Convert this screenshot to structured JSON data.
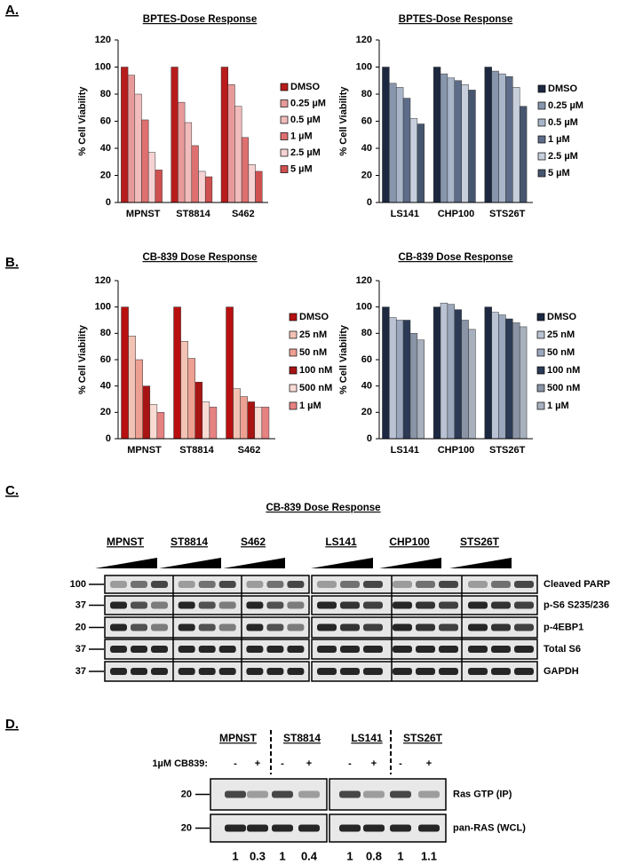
{
  "chart_data": [
    {
      "type": "bar",
      "title": "BPTES-Dose Response",
      "y_label": "% Cell Viability",
      "categories": [
        "MPNST",
        "ST8814",
        "S462"
      ],
      "series": [
        {
          "name": "DMSO",
          "color": "#b81c1c",
          "values": [
            100,
            100,
            100
          ]
        },
        {
          "name": "0.25 µM",
          "color": "#e89a9a",
          "values": [
            94,
            74,
            87
          ]
        },
        {
          "name": "0.5 µM",
          "color": "#f2bcbc",
          "values": [
            80,
            59,
            71
          ]
        },
        {
          "name": "1 µM",
          "color": "#de7070",
          "values": [
            61,
            42,
            48
          ]
        },
        {
          "name": "2.5 µM",
          "color": "#f6d2d2",
          "values": [
            37,
            23,
            28
          ]
        },
        {
          "name": "5 µM",
          "color": "#d05050",
          "values": [
            24,
            19,
            23
          ]
        }
      ],
      "ylim": [
        0,
        120
      ],
      "yticks": [
        0,
        20,
        40,
        60,
        80,
        100,
        120
      ]
    },
    {
      "type": "bar",
      "title": "BPTES-Dose Response",
      "y_label": "% Cell Viability",
      "categories": [
        "LS141",
        "CHP100",
        "STS26T"
      ],
      "series": [
        {
          "name": "DMSO",
          "color": "#1c2940",
          "values": [
            100,
            100,
            100
          ]
        },
        {
          "name": "0.25 µM",
          "color": "#8896ad",
          "values": [
            88,
            95,
            97
          ]
        },
        {
          "name": "0.5 µM",
          "color": "#a9b5c9",
          "values": [
            85,
            92,
            95
          ]
        },
        {
          "name": "1 µM",
          "color": "#5d6c88",
          "values": [
            77,
            90,
            93
          ]
        },
        {
          "name": "2.5 µM",
          "color": "#c7cfdc",
          "values": [
            62,
            87,
            85
          ]
        },
        {
          "name": "5 µM",
          "color": "#46566f",
          "values": [
            58,
            83,
            71
          ]
        }
      ],
      "ylim": [
        0,
        120
      ],
      "yticks": [
        0,
        20,
        40,
        60,
        80,
        100,
        120
      ]
    },
    {
      "type": "bar",
      "title": "CB-839 Dose Response",
      "y_label": "% Cell Viability",
      "categories": [
        "MPNST",
        "ST8814",
        "S462"
      ],
      "series": [
        {
          "name": "DMSO",
          "color": "#b81010",
          "values": [
            100,
            100,
            100
          ]
        },
        {
          "name": "25 nM",
          "color": "#f2c2b4",
          "values": [
            78,
            74,
            38
          ]
        },
        {
          "name": "50 nM",
          "color": "#eda092",
          "values": [
            60,
            61,
            32
          ]
        },
        {
          "name": "100 nM",
          "color": "#a81414",
          "values": [
            40,
            43,
            28
          ]
        },
        {
          "name": "500 nM",
          "color": "#f8dcd4",
          "values": [
            26,
            28,
            24
          ]
        },
        {
          "name": "1 µM",
          "color": "#e68282",
          "values": [
            20,
            24,
            24
          ]
        }
      ],
      "ylim": [
        0,
        120
      ],
      "yticks": [
        0,
        20,
        40,
        60,
        80,
        100,
        120
      ]
    },
    {
      "type": "bar",
      "title": "CB-839 Dose Response",
      "y_label": "% Cell Viability",
      "categories": [
        "LS141",
        "CHP100",
        "STS26T"
      ],
      "series": [
        {
          "name": "DMSO",
          "color": "#1c2940",
          "values": [
            100,
            100,
            100
          ]
        },
        {
          "name": "25 nM",
          "color": "#b9c3d3",
          "values": [
            92,
            103,
            96
          ]
        },
        {
          "name": "50 nM",
          "color": "#9aa7bc",
          "values": [
            90,
            102,
            94
          ]
        },
        {
          "name": "100 nM",
          "color": "#2c3a55",
          "values": [
            90,
            98,
            91
          ]
        },
        {
          "name": "500 nM",
          "color": "#8a94a6",
          "values": [
            80,
            90,
            88
          ]
        },
        {
          "name": "1 µM",
          "color": "#a8b0be",
          "values": [
            75,
            83,
            85
          ]
        }
      ],
      "ylim": [
        0,
        120
      ],
      "yticks": [
        0,
        20,
        40,
        60,
        80,
        100,
        120
      ]
    }
  ],
  "panel_labels": [
    "A.",
    "B.",
    "C.",
    "D."
  ],
  "panel_c": {
    "title": "CB-839 Dose Response",
    "cell_lines": [
      "MPNST",
      "ST8814",
      "S462",
      "LS141",
      "CHP100",
      "STS26T"
    ],
    "markers": [
      "100",
      "37",
      "20",
      "37",
      "37"
    ],
    "proteins": [
      "Cleaved PARP",
      "p-S6 S235/236",
      "p-4EBP1",
      "Total S6",
      "GAPDH"
    ]
  },
  "panel_d": {
    "cell_lines": [
      "MPNST",
      "ST8814",
      "LS141",
      "STS26T"
    ],
    "treatment": "1µM CB839:",
    "signs": [
      "-",
      "+",
      "-",
      "+",
      "-",
      "+",
      "-",
      "+"
    ],
    "markers": [
      "20",
      "20"
    ],
    "rows": [
      "Ras GTP (IP)",
      "pan-RAS (WCL)"
    ],
    "quantification": [
      "1",
      "0.3",
      "1",
      "0.4",
      "1",
      "0.8",
      "1",
      "1.1"
    ]
  }
}
